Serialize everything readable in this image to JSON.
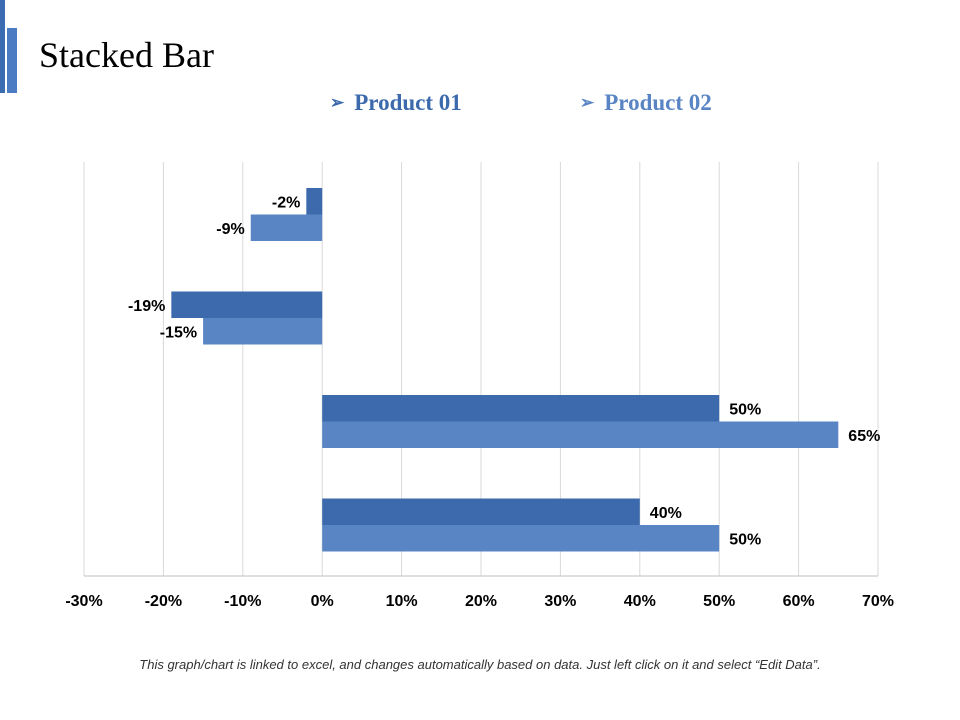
{
  "slide": {
    "title": "Stacked Bar",
    "footnote": "This graph/chart is linked to excel, and changes automatically based on data. Just left click on it and select “Edit Data”."
  },
  "legend": {
    "marker": "➢",
    "items": [
      {
        "label": "Product 01",
        "color": "#3c6aad"
      },
      {
        "label": "Product 02",
        "color": "#5a85c4"
      }
    ]
  },
  "chart_data": {
    "type": "bar",
    "orientation": "horizontal",
    "categories": [
      "",
      "",
      "",
      ""
    ],
    "series": [
      {
        "name": "Product 01",
        "values": [
          -2,
          -19,
          50,
          40
        ],
        "color": "#3c6aad"
      },
      {
        "name": "Product 02",
        "values": [
          -9,
          -15,
          65,
          50
        ],
        "color": "#5a85c4"
      }
    ],
    "x_ticks": [
      "-30%",
      "-20%",
      "-10%",
      "0%",
      "10%",
      "20%",
      "30%",
      "40%",
      "50%",
      "60%",
      "70%"
    ],
    "xlim": [
      -30,
      70
    ],
    "unit": "%",
    "grid": "vertical"
  }
}
